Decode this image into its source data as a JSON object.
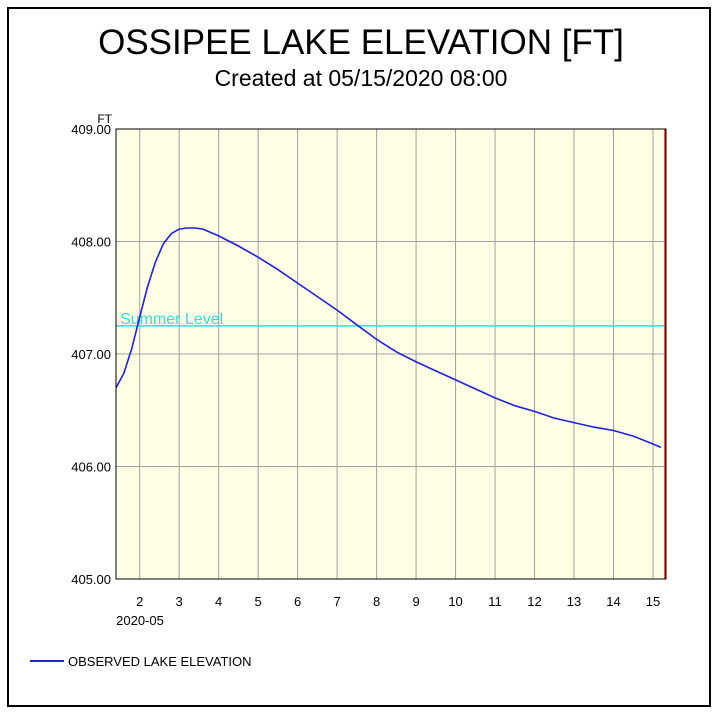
{
  "chart_data": {
    "type": "line",
    "title": "OSSIPEE LAKE ELEVATION [FT]",
    "subtitle": "Created at 05/15/2020 08:00",
    "ylabel": "FT",
    "xlabel": "2020-05",
    "ylim": [
      405.0,
      409.0
    ],
    "xlim": [
      1.4,
      15.33
    ],
    "y_ticks": [
      "405.00",
      "406.00",
      "407.00",
      "408.00",
      "409.00"
    ],
    "x_ticks": [
      "2",
      "3",
      "4",
      "5",
      "6",
      "7",
      "8",
      "9",
      "10",
      "11",
      "12",
      "13",
      "14",
      "15"
    ],
    "grid": true,
    "legend_position": "bottom-left",
    "colors": {
      "series": "#2020e0",
      "reference": "#33dddd",
      "end_marker": "#cc2222",
      "plot_bg": "#ffffe6"
    },
    "reference_line": {
      "label": "Summer Level",
      "value": 407.25
    },
    "series": [
      {
        "name": "OBSERVED LAKE ELEVATION",
        "x": [
          1.4,
          1.6,
          1.8,
          2.0,
          2.2,
          2.4,
          2.6,
          2.8,
          3.0,
          3.2,
          3.4,
          3.6,
          3.8,
          4.0,
          4.5,
          5.0,
          5.5,
          6.0,
          6.5,
          7.0,
          7.5,
          8.0,
          8.5,
          9.0,
          9.5,
          10.0,
          10.5,
          11.0,
          11.5,
          12.0,
          12.5,
          13.0,
          13.5,
          14.0,
          14.5,
          15.0,
          15.2
        ],
        "y": [
          406.7,
          406.83,
          407.05,
          407.33,
          407.6,
          407.82,
          407.98,
          408.07,
          408.11,
          408.12,
          408.12,
          408.11,
          408.08,
          408.05,
          407.96,
          407.86,
          407.75,
          407.63,
          407.51,
          407.39,
          407.26,
          407.13,
          407.02,
          406.93,
          406.85,
          406.77,
          406.69,
          406.61,
          406.54,
          406.49,
          406.43,
          406.39,
          406.35,
          406.32,
          406.27,
          406.2,
          406.17
        ]
      }
    ]
  }
}
